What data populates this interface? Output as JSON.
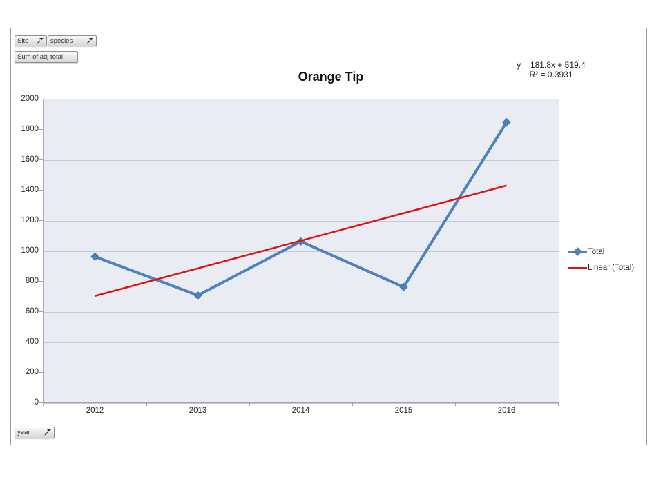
{
  "pivot_fields": {
    "site_label": "Site",
    "species_label": "species",
    "value_label": "Sum of adj total",
    "axis_label": "year"
  },
  "chart": {
    "title": "Orange Tip",
    "equation_line1": "y = 181.8x + 519.4",
    "equation_line2": "R² = 0.3931"
  },
  "chart_data": {
    "type": "line",
    "title": "Orange Tip",
    "categories": [
      "2012",
      "2013",
      "2014",
      "2015",
      "2016"
    ],
    "series": [
      {
        "name": "Total",
        "color": "#4f81bd",
        "marker": "diamond",
        "values": [
          960,
          705,
          1060,
          760,
          1845
        ]
      }
    ],
    "trendline": {
      "name": "Linear (Total)",
      "color": "#e01212",
      "slope": 181.8,
      "intercept": 519.4,
      "r_squared": 0.3931
    },
    "xlabel": "",
    "ylabel": "",
    "ylim": [
      0,
      2000
    ],
    "ytick_step": 200,
    "grid": true,
    "legend_position": "right",
    "plot_bg": "#e9ecf3"
  },
  "colors": {
    "series_blue": "#4f81bd",
    "trend_red": "#e01212",
    "plot_background": "#e9ecf3",
    "gridline": "#c5cad3"
  }
}
